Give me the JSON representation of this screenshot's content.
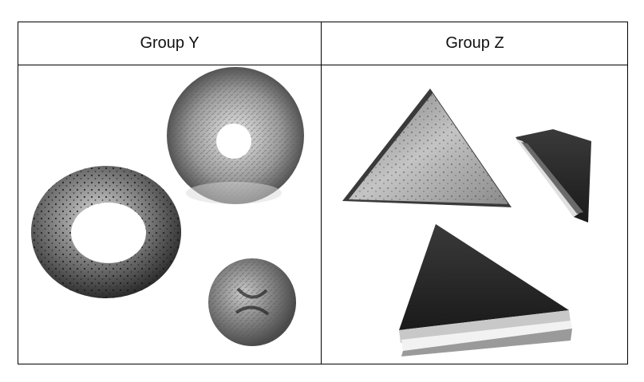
{
  "columns": [
    {
      "title": "Group Y",
      "items": [
        "bagel-with-seeds",
        "round-bread-ring",
        "small-round-roll"
      ]
    },
    {
      "title": "Group Z",
      "items": [
        "triangle-bread-slice",
        "small-triangle-sandwich",
        "large-triangle-sandwich"
      ]
    }
  ]
}
